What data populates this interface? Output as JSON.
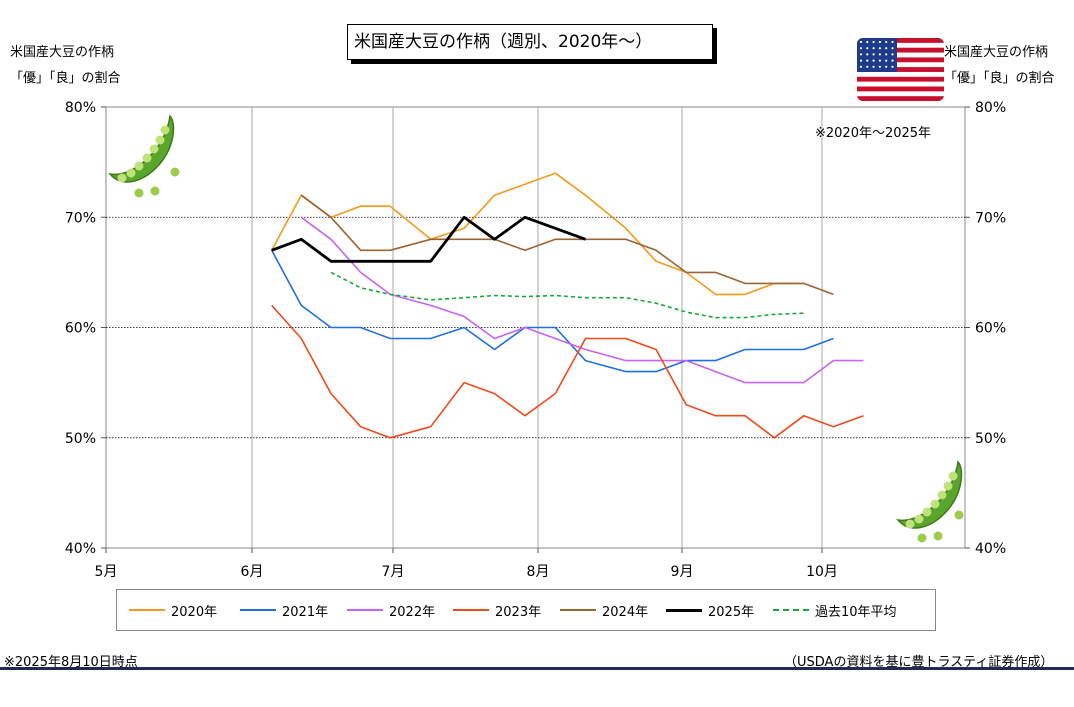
{
  "header": {
    "title": "米国産大豆の作柄（週別、2020年～）",
    "left_label_line1": "米国産大豆の作柄",
    "left_label_line2": "「優」「良」の割合",
    "right_label_line1": "米国産大豆の作柄",
    "right_label_line2": "「優」「良」の割合",
    "range_note": "※2020年～2025年"
  },
  "footer": {
    "asof": "※2025年8月10日時点",
    "source": "（USDAの資料を基に豊トラスティ証券作成）"
  },
  "icons": {
    "flag": "us-flag-icon",
    "pea_left": "green-soybean-icon",
    "pea_right": "green-soybean-icon"
  },
  "chart_data": {
    "type": "line",
    "x_unit": "week",
    "xlim": [
      "5月1日",
      "11月1日"
    ],
    "x_ticks": [
      "5月",
      "6月",
      "7月",
      "8月",
      "9月",
      "10月"
    ],
    "ylim": [
      40,
      80
    ],
    "y_ticks": [
      "40%",
      "50%",
      "60%",
      "70%",
      "80%"
    ],
    "y_tick_values": [
      40,
      50,
      60,
      70,
      80
    ],
    "grid": true,
    "legend_position": "bottom",
    "series": [
      {
        "name": "2020年",
        "color": "#f59a1b",
        "style": "solid",
        "width": 1.6,
        "points": [
          [
            6.14,
            67
          ],
          [
            6.35,
            72
          ],
          [
            6.56,
            70
          ],
          [
            6.77,
            71
          ],
          [
            6.98,
            71
          ],
          [
            7.26,
            68
          ],
          [
            7.49,
            69
          ],
          [
            7.7,
            72
          ],
          [
            7.91,
            73
          ],
          [
            8.12,
            74
          ],
          [
            8.33,
            72
          ],
          [
            8.61,
            69
          ],
          [
            8.82,
            66
          ],
          [
            9.03,
            65
          ],
          [
            9.24,
            63
          ],
          [
            9.45,
            63
          ],
          [
            9.66,
            64
          ],
          [
            9.87,
            64
          ]
        ]
      },
      {
        "name": "2021年",
        "color": "#1f6fe0",
        "style": "solid",
        "width": 1.6,
        "points": [
          [
            6.14,
            67
          ],
          [
            6.35,
            62
          ],
          [
            6.56,
            60
          ],
          [
            6.77,
            60
          ],
          [
            6.98,
            59
          ],
          [
            7.26,
            59
          ],
          [
            7.49,
            60
          ],
          [
            7.7,
            58
          ],
          [
            7.91,
            60
          ],
          [
            8.12,
            60
          ],
          [
            8.33,
            57
          ],
          [
            8.61,
            56
          ],
          [
            8.82,
            56
          ],
          [
            9.03,
            57
          ],
          [
            9.24,
            57
          ],
          [
            9.45,
            58
          ],
          [
            9.66,
            58
          ],
          [
            9.87,
            58
          ],
          [
            10.08,
            59
          ]
        ]
      },
      {
        "name": "2022年",
        "color": "#c863f2",
        "style": "solid",
        "width": 1.6,
        "points": [
          [
            6.35,
            70
          ],
          [
            6.56,
            68
          ],
          [
            6.77,
            65
          ],
          [
            6.98,
            63
          ],
          [
            7.26,
            62
          ],
          [
            7.49,
            61
          ],
          [
            7.7,
            59
          ],
          [
            7.91,
            60
          ],
          [
            8.12,
            59
          ],
          [
            8.33,
            58
          ],
          [
            8.61,
            57
          ],
          [
            8.82,
            57
          ],
          [
            9.03,
            57
          ],
          [
            9.24,
            56
          ],
          [
            9.45,
            55
          ],
          [
            9.66,
            55
          ],
          [
            9.87,
            55
          ],
          [
            10.08,
            57
          ],
          [
            10.29,
            57
          ]
        ]
      },
      {
        "name": "2023年",
        "color": "#f24a1c",
        "style": "solid",
        "width": 1.6,
        "points": [
          [
            6.14,
            62
          ],
          [
            6.35,
            59
          ],
          [
            6.56,
            54
          ],
          [
            6.77,
            51
          ],
          [
            6.98,
            50
          ],
          [
            7.26,
            51
          ],
          [
            7.49,
            55
          ],
          [
            7.7,
            54
          ],
          [
            7.91,
            52
          ],
          [
            8.12,
            54
          ],
          [
            8.33,
            59
          ],
          [
            8.61,
            59
          ],
          [
            8.82,
            58
          ],
          [
            9.03,
            53
          ],
          [
            9.24,
            52
          ],
          [
            9.45,
            52
          ],
          [
            9.66,
            50
          ],
          [
            9.87,
            52
          ],
          [
            10.08,
            51
          ],
          [
            10.29,
            52
          ]
        ]
      },
      {
        "name": "2024年",
        "color": "#9c6432",
        "style": "solid",
        "width": 1.6,
        "points": [
          [
            6.35,
            72
          ],
          [
            6.56,
            70
          ],
          [
            6.77,
            67
          ],
          [
            6.98,
            67
          ],
          [
            7.26,
            68
          ],
          [
            7.49,
            68
          ],
          [
            7.7,
            68
          ],
          [
            7.91,
            67
          ],
          [
            8.12,
            68
          ],
          [
            8.33,
            68
          ],
          [
            8.61,
            68
          ],
          [
            8.82,
            67
          ],
          [
            9.03,
            65
          ],
          [
            9.24,
            65
          ],
          [
            9.45,
            64
          ],
          [
            9.66,
            64
          ],
          [
            9.87,
            64
          ],
          [
            10.08,
            63
          ]
        ]
      },
      {
        "name": "2025年",
        "color": "#000000",
        "style": "solid",
        "width": 2.8,
        "points": [
          [
            6.14,
            67
          ],
          [
            6.35,
            68
          ],
          [
            6.56,
            66
          ],
          [
            6.77,
            66
          ],
          [
            6.98,
            66
          ],
          [
            7.26,
            66
          ],
          [
            7.49,
            70
          ],
          [
            7.7,
            68
          ],
          [
            7.91,
            70
          ],
          [
            8.12,
            69
          ],
          [
            8.33,
            68
          ]
        ]
      },
      {
        "name": "過去10年平均",
        "color": "#1aa83a",
        "style": "dashed",
        "width": 1.6,
        "points": [
          [
            6.56,
            65
          ],
          [
            6.77,
            63.6
          ],
          [
            6.98,
            63
          ],
          [
            7.26,
            62.5
          ],
          [
            7.49,
            62.7
          ],
          [
            7.7,
            62.9
          ],
          [
            7.91,
            62.8
          ],
          [
            8.12,
            62.9
          ],
          [
            8.33,
            62.7
          ],
          [
            8.61,
            62.7
          ],
          [
            8.82,
            62.2
          ],
          [
            9.03,
            61.4
          ],
          [
            9.24,
            60.9
          ],
          [
            9.45,
            60.9
          ],
          [
            9.66,
            61.2
          ],
          [
            9.87,
            61.3
          ]
        ]
      }
    ]
  }
}
